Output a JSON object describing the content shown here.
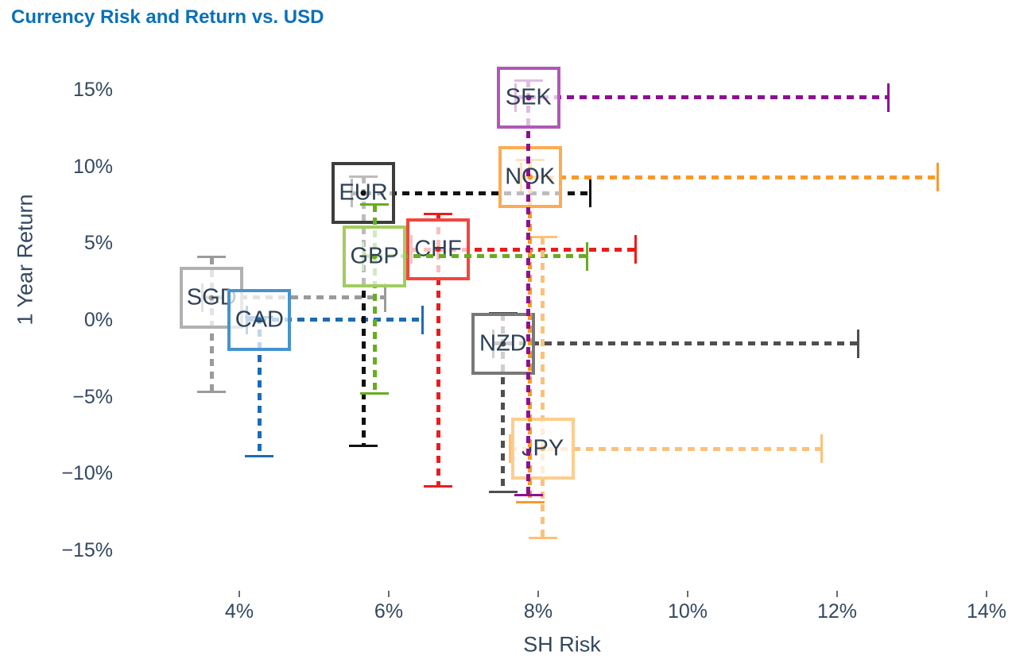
{
  "title": "Currency Risk and Return vs. USD",
  "chart_data": {
    "type": "scatter",
    "title": "Currency Risk and Return vs. USD",
    "xlabel": "SH Risk",
    "ylabel": "1 Year Return",
    "grid": false,
    "legend": false,
    "xlim": [
      3,
      14.6
    ],
    "ylim": [
      -17,
      16.5
    ],
    "x_tick_values": [
      4,
      6,
      8,
      10,
      12,
      14
    ],
    "x_tick_labels": [
      "4%",
      "6%",
      "8%",
      "10%",
      "12%",
      "14%"
    ],
    "y_tick_values": [
      15,
      10,
      5,
      0,
      -5,
      -10,
      -15
    ],
    "y_tick_labels": [
      "15%",
      "10%",
      "5%",
      "0%",
      "−5%",
      "−10%",
      "−15%"
    ],
    "units": "percent",
    "series": [
      {
        "name": "SGD",
        "risk": 3.63,
        "return": 1.45,
        "risk_range": [
          3.5,
          5.95
        ],
        "return_range": [
          -4.7,
          4.1
        ],
        "line_color": "#9b9b9b",
        "box_color": "#b1b1b1"
      },
      {
        "name": "CAD",
        "risk": 4.27,
        "return": 0.0,
        "risk_range": [
          4.1,
          6.45
        ],
        "return_range": [
          -8.85,
          0.2
        ],
        "line_color": "#1c6cb5",
        "box_color": "#4693cf"
      },
      {
        "name": "EUR",
        "risk": 5.66,
        "return": 8.25,
        "risk_range": [
          5.5,
          8.7
        ],
        "return_range": [
          -8.2,
          9.35
        ],
        "line_color": "#111111",
        "box_color": "#3d3d3d"
      },
      {
        "name": "CHF",
        "risk": 6.66,
        "return": 4.6,
        "risk_range": [
          6.3,
          9.3
        ],
        "return_range": [
          -10.85,
          6.9
        ],
        "line_color": "#ec1c1c",
        "box_color": "#f4453e"
      },
      {
        "name": "GBP",
        "risk": 5.81,
        "return": 4.15,
        "risk_range": [
          5.65,
          8.65
        ],
        "return_range": [
          -4.8,
          7.5
        ],
        "line_color": "#66ad21",
        "box_color": "#a2cd60"
      },
      {
        "name": "NZD",
        "risk": 7.53,
        "return": -1.55,
        "risk_range": [
          7.4,
          12.28
        ],
        "return_range": [
          -11.2,
          0.42
        ],
        "line_color": "#4f4f4f",
        "box_color": "#787878"
      },
      {
        "name": "JPY",
        "risk": 8.06,
        "return": -8.4,
        "risk_range": [
          7.62,
          11.79
        ],
        "return_range": [
          -14.2,
          5.38
        ],
        "line_color": "#fbc179",
        "box_color": "#fdcd8e"
      },
      {
        "name": "NOK",
        "risk": 7.89,
        "return": 9.3,
        "risk_range": [
          7.77,
          13.35
        ],
        "return_range": [
          -11.85,
          10.4
        ],
        "line_color": "#f8992b",
        "box_color": "#fbac53"
      },
      {
        "name": "SEK",
        "risk": 7.87,
        "return": 14.5,
        "risk_range": [
          7.7,
          12.69
        ],
        "return_range": [
          -11.4,
          15.6
        ],
        "line_color": "#8e0f94",
        "box_color": "#b157b7"
      }
    ]
  }
}
